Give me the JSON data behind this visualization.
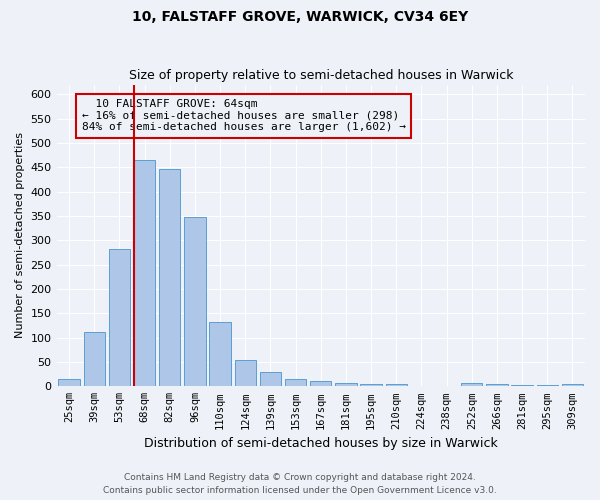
{
  "title": "10, FALSTAFF GROVE, WARWICK, CV34 6EY",
  "subtitle": "Size of property relative to semi-detached houses in Warwick",
  "xlabel": "Distribution of semi-detached houses by size in Warwick",
  "ylabel": "Number of semi-detached properties",
  "categories": [
    "25sqm",
    "39sqm",
    "53sqm",
    "68sqm",
    "82sqm",
    "96sqm",
    "110sqm",
    "124sqm",
    "139sqm",
    "153sqm",
    "167sqm",
    "181sqm",
    "195sqm",
    "210sqm",
    "224sqm",
    "238sqm",
    "252sqm",
    "266sqm",
    "281sqm",
    "295sqm",
    "309sqm"
  ],
  "values": [
    15,
    111,
    283,
    466,
    447,
    348,
    133,
    55,
    30,
    15,
    10,
    7,
    5,
    5,
    0,
    0,
    7,
    5,
    3,
    3,
    5
  ],
  "bar_color": "#aec6e8",
  "bar_edge_color": "#5a9fd4",
  "property_label": "10 FALSTAFF GROVE: 64sqm",
  "pct_smaller": 16,
  "n_smaller": 298,
  "pct_larger": 84,
  "n_larger": 1602,
  "vline_x_index": 3,
  "annotation_box_color": "#cc0000",
  "ylim": [
    0,
    620
  ],
  "yticks": [
    0,
    50,
    100,
    150,
    200,
    250,
    300,
    350,
    400,
    450,
    500,
    550,
    600
  ],
  "footer1": "Contains HM Land Registry data © Crown copyright and database right 2024.",
  "footer2": "Contains public sector information licensed under the Open Government Licence v3.0.",
  "bg_color": "#eef2f8",
  "grid_color": "#ffffff"
}
